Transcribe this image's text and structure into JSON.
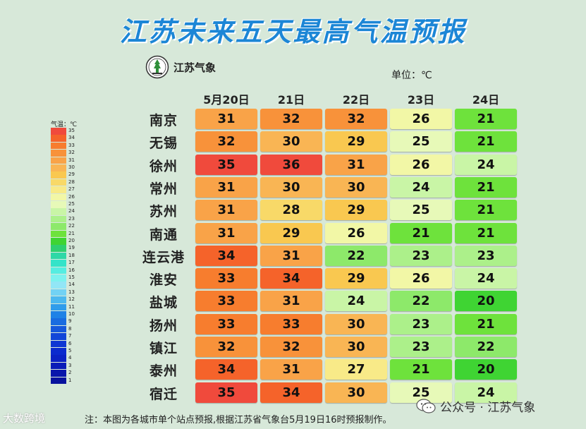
{
  "title": "江苏未来五天最高气温预报",
  "logo": {
    "text": "江苏气象",
    "icon": "jiangsu-meteorology-emblem-icon"
  },
  "unit_label": "单位：℃",
  "legend": {
    "title": "气温：℃",
    "levels": [
      {
        "value": 35,
        "color": "#f04a3c"
      },
      {
        "value": 34,
        "color": "#f5632a"
      },
      {
        "value": 33,
        "color": "#f77d2e"
      },
      {
        "value": 32,
        "color": "#f8923a"
      },
      {
        "value": 31,
        "color": "#f9a348"
      },
      {
        "value": 30,
        "color": "#f9b554"
      },
      {
        "value": 29,
        "color": "#f9c850"
      },
      {
        "value": 28,
        "color": "#f8d968"
      },
      {
        "value": 27,
        "color": "#f8ea88"
      },
      {
        "value": 26,
        "color": "#f2f7a6"
      },
      {
        "value": 25,
        "color": "#e7f9b8"
      },
      {
        "value": 24,
        "color": "#c9f5a6"
      },
      {
        "value": 23,
        "color": "#acf08a"
      },
      {
        "value": 22,
        "color": "#8de96a"
      },
      {
        "value": 21,
        "color": "#6ee23c"
      },
      {
        "value": 20,
        "color": "#3fd433"
      },
      {
        "value": 19,
        "color": "#2fcf70"
      },
      {
        "value": 18,
        "color": "#2ed8a6"
      },
      {
        "value": 17,
        "color": "#34e3c9"
      },
      {
        "value": 16,
        "color": "#55ede1"
      },
      {
        "value": 15,
        "color": "#7df1ee"
      },
      {
        "value": 14,
        "color": "#92e6f6"
      },
      {
        "value": 13,
        "color": "#72d2f4"
      },
      {
        "value": 12,
        "color": "#4cb8ef"
      },
      {
        "value": 11,
        "color": "#2f9ceb"
      },
      {
        "value": 10,
        "color": "#1f82e6"
      },
      {
        "value": 9,
        "color": "#196ce0"
      },
      {
        "value": 8,
        "color": "#1558dc"
      },
      {
        "value": 7,
        "color": "#1146d8"
      },
      {
        "value": 6,
        "color": "#0e36d3"
      },
      {
        "value": 5,
        "color": "#0b2ace"
      },
      {
        "value": 4,
        "color": "#0b22c4"
      },
      {
        "value": 3,
        "color": "#0a1cb8"
      },
      {
        "value": 2,
        "color": "#0916ab"
      },
      {
        "value": 1,
        "color": "#08129e"
      }
    ]
  },
  "chart_data": {
    "type": "heatmap",
    "title": "江苏未来五天最高气温预报",
    "unit": "℃",
    "days": [
      "5月20日",
      "21日",
      "22日",
      "23日",
      "24日"
    ],
    "cities": [
      "南京",
      "无锡",
      "徐州",
      "常州",
      "苏州",
      "南通",
      "连云港",
      "淮安",
      "盐城",
      "扬州",
      "镇江",
      "泰州",
      "宿迁"
    ],
    "values": [
      [
        31,
        32,
        32,
        26,
        21
      ],
      [
        32,
        30,
        29,
        25,
        21
      ],
      [
        35,
        36,
        31,
        26,
        24
      ],
      [
        31,
        30,
        30,
        24,
        21
      ],
      [
        31,
        28,
        29,
        25,
        21
      ],
      [
        31,
        29,
        26,
        21,
        21
      ],
      [
        34,
        31,
        22,
        23,
        23
      ],
      [
        33,
        34,
        29,
        26,
        24
      ],
      [
        33,
        31,
        24,
        22,
        20
      ],
      [
        33,
        33,
        30,
        23,
        21
      ],
      [
        32,
        32,
        30,
        23,
        22
      ],
      [
        34,
        31,
        27,
        21,
        20
      ],
      [
        35,
        34,
        30,
        25,
        24
      ]
    ]
  },
  "footnote": "注：本图为各城市单个站点预报,根据江苏省气象台5月19日16时预报制作。",
  "wechat": {
    "text": "公众号 · 江苏气象",
    "icon": "wechat-icon"
  },
  "watermark": "大数跨境"
}
